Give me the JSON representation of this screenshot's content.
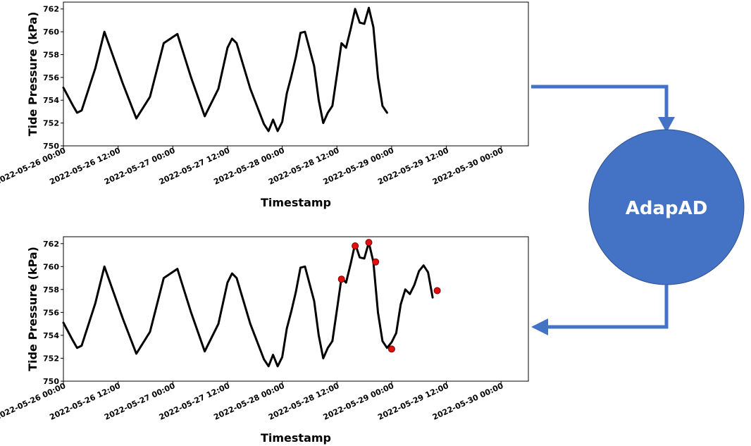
{
  "model": {
    "label": "AdapAD",
    "color": "#4472c4"
  },
  "chart_data": [
    {
      "type": "line",
      "panel": "top",
      "title": "",
      "xlabel": "Timestamp",
      "ylabel": "Tide Pressure (kPa)",
      "ylim": [
        750,
        762.6
      ],
      "xlim": [
        "2022-05-26 00:00",
        "2022-05-30 06:00"
      ],
      "yticks": [
        "750",
        "752",
        "754",
        "756",
        "758",
        "760",
        "762"
      ],
      "xticks": [
        "2022-05-26 00:00",
        "2022-05-26 12:00",
        "2022-05-27 00:00",
        "2022-05-27 12:00",
        "2022-05-28 00:00",
        "2022-05-28 12:00",
        "2022-05-29 00:00",
        "2022-05-29 12:00",
        "2022-05-30 00:00"
      ],
      "grid": false,
      "series": [
        {
          "color": "#000000",
          "x": [
            "2022-05-26 00:00",
            "2022-05-26 02:00",
            "2022-05-26 03:00",
            "2022-05-26 04:00",
            "2022-05-26 07:00",
            "2022-05-26 09:00",
            "2022-05-26 13:00",
            "2022-05-26 16:00",
            "2022-05-26 19:00",
            "2022-05-26 22:00",
            "2022-05-27 01:00",
            "2022-05-27 04:00",
            "2022-05-27 07:00",
            "2022-05-27 10:00",
            "2022-05-27 12:00",
            "2022-05-27 13:00",
            "2022-05-27 14:00",
            "2022-05-27 17:00",
            "2022-05-27 20:00",
            "2022-05-27 21:00",
            "2022-05-27 22:00",
            "2022-05-27 23:00",
            "2022-05-28 00:00",
            "2022-05-28 01:00",
            "2022-05-28 02:00",
            "2022-05-28 03:00",
            "2022-05-28 04:00",
            "2022-05-28 05:00",
            "2022-05-28 06:00",
            "2022-05-28 07:00",
            "2022-05-28 08:00",
            "2022-05-28 09:00",
            "2022-05-28 10:00",
            "2022-05-28 11:00",
            "2022-05-28 12:00",
            "2022-05-28 13:00",
            "2022-05-28 14:00",
            "2022-05-28 15:00",
            "2022-05-28 16:00",
            "2022-05-28 17:00",
            "2022-05-28 18:00",
            "2022-05-28 19:00",
            "2022-05-28 20:00",
            "2022-05-28 21:00",
            "2022-05-28 22:00",
            "2022-05-28 23:00"
          ],
          "values": [
            755.1,
            753.6,
            752.9,
            753.1,
            756.8,
            760.0,
            755.5,
            752.4,
            754.3,
            759.0,
            759.8,
            756.0,
            752.6,
            755.0,
            758.6,
            759.4,
            759.0,
            755.0,
            751.9,
            751.3,
            752.3,
            751.3,
            752.1,
            754.6,
            756.1,
            757.8,
            759.9,
            760.0,
            758.5,
            757.0,
            754.0,
            752.0,
            752.9,
            753.5,
            756.2,
            759.0,
            758.6,
            760.2,
            762.0,
            760.8,
            760.7,
            762.1,
            760.4,
            756.0,
            753.5,
            752.9
          ]
        }
      ],
      "anomalies": {
        "x": [],
        "values": []
      }
    },
    {
      "type": "line",
      "panel": "bottom",
      "title": "",
      "xlabel": "Timestamp",
      "ylabel": "Tide Pressure (kPa)",
      "ylim": [
        750,
        762.6
      ],
      "xlim": [
        "2022-05-26 00:00",
        "2022-05-30 06:00"
      ],
      "yticks": [
        "750",
        "752",
        "754",
        "756",
        "758",
        "760",
        "762"
      ],
      "xticks": [
        "2022-05-26 00:00",
        "2022-05-26 12:00",
        "2022-05-27 00:00",
        "2022-05-27 12:00",
        "2022-05-28 00:00",
        "2022-05-28 12:00",
        "2022-05-29 00:00",
        "2022-05-29 12:00",
        "2022-05-30 00:00"
      ],
      "grid": false,
      "series": [
        {
          "color": "#000000",
          "x": [
            "2022-05-26 00:00",
            "2022-05-26 02:00",
            "2022-05-26 03:00",
            "2022-05-26 04:00",
            "2022-05-26 07:00",
            "2022-05-26 09:00",
            "2022-05-26 13:00",
            "2022-05-26 16:00",
            "2022-05-26 19:00",
            "2022-05-26 22:00",
            "2022-05-27 01:00",
            "2022-05-27 04:00",
            "2022-05-27 07:00",
            "2022-05-27 10:00",
            "2022-05-27 12:00",
            "2022-05-27 13:00",
            "2022-05-27 14:00",
            "2022-05-27 17:00",
            "2022-05-27 20:00",
            "2022-05-27 21:00",
            "2022-05-27 22:00",
            "2022-05-27 23:00",
            "2022-05-28 00:00",
            "2022-05-28 01:00",
            "2022-05-28 02:00",
            "2022-05-28 03:00",
            "2022-05-28 04:00",
            "2022-05-28 05:00",
            "2022-05-28 06:00",
            "2022-05-28 07:00",
            "2022-05-28 08:00",
            "2022-05-28 09:00",
            "2022-05-28 10:00",
            "2022-05-28 11:00",
            "2022-05-28 12:00",
            "2022-05-28 13:00",
            "2022-05-28 14:00",
            "2022-05-28 15:00",
            "2022-05-28 16:00",
            "2022-05-28 17:00",
            "2022-05-28 18:00",
            "2022-05-28 19:00",
            "2022-05-28 20:00",
            "2022-05-28 21:00",
            "2022-05-28 22:00",
            "2022-05-28 23:00",
            "2022-05-29 00:00",
            "2022-05-29 01:00",
            "2022-05-29 02:00",
            "2022-05-29 03:00",
            "2022-05-29 04:00",
            "2022-05-29 05:00",
            "2022-05-29 06:00",
            "2022-05-29 07:00",
            "2022-05-29 08:00",
            "2022-05-29 09:00"
          ],
          "values": [
            755.1,
            753.6,
            752.9,
            753.1,
            756.8,
            760.0,
            755.5,
            752.4,
            754.3,
            759.0,
            759.8,
            756.0,
            752.6,
            755.0,
            758.6,
            759.4,
            759.0,
            755.0,
            751.9,
            751.3,
            752.3,
            751.3,
            752.1,
            754.6,
            756.1,
            757.8,
            759.9,
            760.0,
            758.5,
            757.0,
            754.0,
            752.0,
            752.9,
            753.5,
            756.2,
            759.0,
            758.6,
            760.2,
            762.0,
            760.8,
            760.7,
            762.1,
            760.4,
            756.0,
            753.5,
            752.9,
            753.4,
            754.2,
            756.7,
            758.0,
            757.6,
            758.4,
            759.6,
            760.1,
            759.5,
            757.3
          ]
        }
      ],
      "anomalies": {
        "x": [
          "2022-05-28 13:00",
          "2022-05-28 16:00",
          "2022-05-28 19:00",
          "2022-05-28 20:30",
          "2022-05-29 00:00",
          "2022-05-29 10:00"
        ],
        "values": [
          758.9,
          761.8,
          762.1,
          760.4,
          752.8,
          757.9
        ]
      }
    }
  ]
}
